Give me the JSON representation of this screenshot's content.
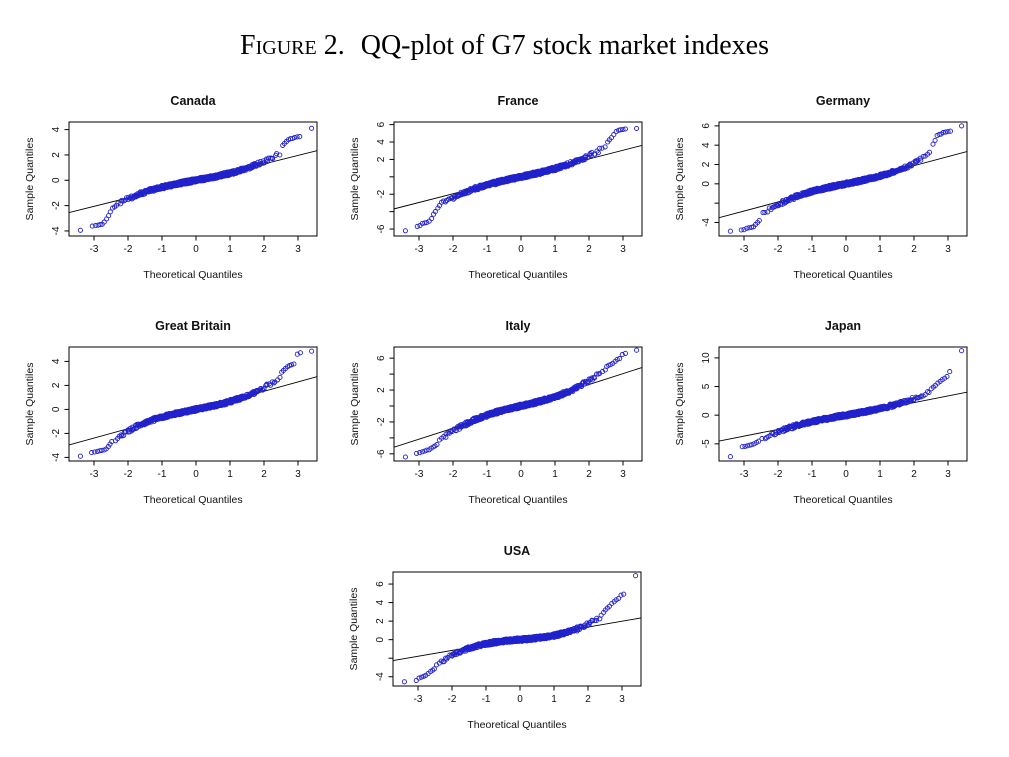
{
  "figure": {
    "label": "Figure 2.",
    "title": "QQ-plot of G7 stock market indexes"
  },
  "style": {
    "point_color": "#2222cc",
    "line_color": "#000000",
    "background": "#ffffff",
    "marker": "open-circle",
    "grid": false
  },
  "chart_data": [
    {
      "type": "scatter",
      "title": "Canada",
      "xlabel": "Theoretical Quantiles",
      "ylabel": "Sample Quantiles",
      "xticks": [
        -3,
        -2,
        -1,
        0,
        1,
        2,
        3
      ],
      "xlim": [
        -3.7,
        3.7
      ],
      "ytick_values": [
        -4,
        -2,
        0,
        2,
        4
      ],
      "ytick_labels": [
        "-4",
        "-2",
        "0",
        "2",
        "4"
      ],
      "ylim": [
        -4.4,
        4.6
      ],
      "ref_line": {
        "slope": 0.67,
        "intercept": -0.05
      },
      "cloud": {
        "n": 650,
        "slope": 0.49,
        "cubic": 0.062,
        "x_max": 2.5
      },
      "tail_points_left": [
        [
          -3.4,
          -3.95
        ],
        [
          -3.05,
          -3.62
        ],
        [
          -2.95,
          -3.58
        ],
        [
          -2.88,
          -3.55
        ],
        [
          -2.82,
          -3.5
        ],
        [
          -2.76,
          -3.48
        ],
        [
          -2.7,
          -3.3
        ],
        [
          -2.63,
          -3.05
        ],
        [
          -2.57,
          -2.8
        ],
        [
          -2.52,
          -2.5
        ]
      ],
      "tail_points_right": [
        [
          3.4,
          4.1
        ],
        [
          3.05,
          3.45
        ],
        [
          2.97,
          3.42
        ],
        [
          2.9,
          3.38
        ],
        [
          2.84,
          3.3
        ],
        [
          2.78,
          3.28
        ],
        [
          2.72,
          3.2
        ],
        [
          2.66,
          3.05
        ],
        [
          2.6,
          2.9
        ],
        [
          2.55,
          2.75
        ]
      ]
    },
    {
      "type": "scatter",
      "title": "France",
      "xlabel": "Theoretical Quantiles",
      "ylabel": "Sample Quantiles",
      "xticks": [
        -3,
        -2,
        -1,
        0,
        1,
        2,
        3
      ],
      "xlim": [
        -3.7,
        3.7
      ],
      "ytick_values": [
        -6,
        -4,
        -2,
        0,
        2,
        4,
        6
      ],
      "ytick_labels": [
        "-6",
        "",
        "-2",
        "",
        "2",
        "4",
        "6"
      ],
      "ylim": [
        -6.8,
        6.3
      ],
      "ref_line": {
        "slope": 1.0,
        "intercept": 0.05
      },
      "cloud": {
        "n": 650,
        "slope": 0.86,
        "cubic": 0.086,
        "x_max": 2.5
      },
      "tail_points_left": [
        [
          -3.4,
          -6.2
        ],
        [
          -3.05,
          -5.7
        ],
        [
          -2.97,
          -5.6
        ],
        [
          -2.9,
          -5.35
        ],
        [
          -2.83,
          -5.3
        ],
        [
          -2.77,
          -5.25
        ],
        [
          -2.7,
          -5.1
        ],
        [
          -2.63,
          -4.8
        ],
        [
          -2.57,
          -4.3
        ],
        [
          -2.52,
          -4.0
        ]
      ],
      "tail_points_right": [
        [
          3.4,
          5.55
        ],
        [
          3.07,
          5.5
        ],
        [
          3.0,
          5.45
        ],
        [
          2.93,
          5.4
        ],
        [
          2.87,
          5.35
        ],
        [
          2.8,
          5.2
        ],
        [
          2.73,
          4.85
        ],
        [
          2.66,
          4.5
        ],
        [
          2.6,
          4.25
        ],
        [
          2.55,
          4.0
        ]
      ]
    },
    {
      "type": "scatter",
      "title": "Germany",
      "xlabel": "Theoretical Quantiles",
      "ylabel": "Sample Quantiles",
      "xticks": [
        -3,
        -2,
        -1,
        0,
        1,
        2,
        3
      ],
      "xlim": [
        -3.7,
        3.7
      ],
      "ytick_values": [
        -4,
        -2,
        0,
        2,
        4,
        6
      ],
      "ytick_labels": [
        "-4",
        "",
        "0",
        "2",
        "4",
        "6"
      ],
      "ylim": [
        -5.4,
        6.4
      ],
      "ref_line": {
        "slope": 0.94,
        "intercept": 0.0
      },
      "cloud": {
        "n": 650,
        "slope": 0.708,
        "cubic": 0.0916,
        "x_max": 2.5
      },
      "tail_points_left": [
        [
          -3.4,
          -4.9
        ],
        [
          -3.08,
          -4.78
        ],
        [
          -3.0,
          -4.75
        ],
        [
          -2.92,
          -4.6
        ],
        [
          -2.85,
          -4.55
        ],
        [
          -2.78,
          -4.5
        ],
        [
          -2.72,
          -4.45
        ],
        [
          -2.66,
          -4.2
        ],
        [
          -2.6,
          -4.0
        ],
        [
          -2.55,
          -3.8
        ]
      ],
      "tail_points_right": [
        [
          3.4,
          6.0
        ],
        [
          3.07,
          5.45
        ],
        [
          3.0,
          5.4
        ],
        [
          2.93,
          5.35
        ],
        [
          2.86,
          5.3
        ],
        [
          2.8,
          5.15
        ],
        [
          2.74,
          5.1
        ],
        [
          2.68,
          5.0
        ],
        [
          2.62,
          4.5
        ],
        [
          2.56,
          4.1
        ]
      ]
    },
    {
      "type": "scatter",
      "title": "Great Britain",
      "xlabel": "Theoretical Quantiles",
      "ylabel": "Sample Quantiles",
      "xticks": [
        -3,
        -2,
        -1,
        0,
        1,
        2,
        3
      ],
      "xlim": [
        -3.7,
        3.7
      ],
      "ytick_values": [
        -4,
        -2,
        0,
        2,
        4
      ],
      "ytick_labels": [
        "-4",
        "-2",
        "0",
        "2",
        "4"
      ],
      "ylim": [
        -4.3,
        5.2
      ],
      "ref_line": {
        "slope": 0.78,
        "intercept": -0.05
      },
      "cloud": {
        "n": 650,
        "slope": 0.568,
        "cubic": 0.082,
        "x_max": 2.5
      },
      "tail_points_left": [
        [
          -3.4,
          -3.9
        ],
        [
          -3.07,
          -3.6
        ],
        [
          -2.98,
          -3.55
        ],
        [
          -2.9,
          -3.5
        ],
        [
          -2.83,
          -3.45
        ],
        [
          -2.77,
          -3.42
        ],
        [
          -2.7,
          -3.38
        ],
        [
          -2.64,
          -3.3
        ],
        [
          -2.58,
          -3.1
        ],
        [
          -2.53,
          -2.9
        ]
      ],
      "tail_points_right": [
        [
          3.4,
          4.85
        ],
        [
          3.07,
          4.72
        ],
        [
          2.98,
          4.6
        ],
        [
          2.88,
          3.78
        ],
        [
          2.81,
          3.72
        ],
        [
          2.75,
          3.65
        ],
        [
          2.69,
          3.55
        ],
        [
          2.63,
          3.4
        ],
        [
          2.57,
          3.25
        ],
        [
          2.52,
          3.1
        ]
      ]
    },
    {
      "type": "scatter",
      "title": "Italy",
      "xlabel": "Theoretical Quantiles",
      "ylabel": "Sample Quantiles",
      "xticks": [
        -3,
        -2,
        -1,
        0,
        1,
        2,
        3
      ],
      "xlim": [
        -3.7,
        3.7
      ],
      "ytick_values": [
        -6,
        -4,
        -2,
        0,
        2,
        4,
        6
      ],
      "ytick_labels": [
        "-6",
        "",
        "-2",
        "",
        "2",
        "",
        "6"
      ],
      "ylim": [
        -6.9,
        7.4
      ],
      "ref_line": {
        "slope": 1.37,
        "intercept": -0.05
      },
      "cloud": {
        "n": 650,
        "slope": 1.003,
        "cubic": 0.147,
        "x_max": 2.5
      },
      "tail_points_left": [
        [
          -3.4,
          -6.4
        ],
        [
          -3.07,
          -5.95
        ],
        [
          -2.98,
          -5.85
        ],
        [
          -2.9,
          -5.75
        ],
        [
          -2.83,
          -5.65
        ],
        [
          -2.77,
          -5.55
        ],
        [
          -2.7,
          -5.5
        ],
        [
          -2.64,
          -5.3
        ],
        [
          -2.58,
          -5.15
        ],
        [
          -2.53,
          -5.0
        ]
      ],
      "tail_points_right": [
        [
          3.4,
          7.0
        ],
        [
          3.07,
          6.6
        ],
        [
          2.98,
          6.45
        ],
        [
          2.9,
          5.95
        ],
        [
          2.83,
          5.85
        ],
        [
          2.77,
          5.6
        ],
        [
          2.7,
          5.35
        ],
        [
          2.64,
          5.2
        ],
        [
          2.58,
          5.1
        ],
        [
          2.52,
          4.95
        ]
      ]
    },
    {
      "type": "scatter",
      "title": "Japan",
      "xlabel": "Theoretical Quantiles",
      "ylabel": "Sample Quantiles",
      "xticks": [
        -3,
        -2,
        -1,
        0,
        1,
        2,
        3
      ],
      "xlim": [
        -3.7,
        3.7
      ],
      "ytick_values": [
        -5,
        0,
        5,
        10
      ],
      "ytick_labels": [
        "-5",
        "0",
        "5",
        "10"
      ],
      "ylim": [
        -8.0,
        11.9
      ],
      "ref_line": {
        "slope": 1.17,
        "intercept": -0.15
      },
      "cloud": {
        "n": 650,
        "slope": 1.049,
        "cubic": 0.101,
        "x_max": 2.5
      },
      "tail_points_left": [
        [
          -3.4,
          -7.25
        ],
        [
          -3.05,
          -5.5
        ],
        [
          -2.97,
          -5.45
        ],
        [
          -2.9,
          -5.35
        ],
        [
          -2.83,
          -5.25
        ],
        [
          -2.77,
          -5.15
        ],
        [
          -2.7,
          -5.0
        ],
        [
          -2.63,
          -4.75
        ],
        [
          -2.57,
          -4.55
        ]
      ],
      "tail_points_right": [
        [
          3.4,
          11.25
        ],
        [
          3.05,
          7.6
        ],
        [
          2.97,
          6.75
        ],
        [
          2.9,
          6.45
        ],
        [
          2.83,
          6.2
        ],
        [
          2.77,
          5.9
        ],
        [
          2.7,
          5.6
        ],
        [
          2.63,
          5.2
        ],
        [
          2.57,
          4.9
        ],
        [
          2.51,
          4.6
        ]
      ]
    },
    {
      "type": "scatter",
      "title": "USA",
      "xlabel": "Theoretical Quantiles",
      "ylabel": "Sample Quantiles",
      "xticks": [
        -3,
        -2,
        -1,
        0,
        1,
        2,
        3
      ],
      "xlim": [
        -3.7,
        3.7
      ],
      "ytick_values": [
        -4,
        -2,
        0,
        2,
        4,
        6
      ],
      "ytick_labels": [
        "-4",
        "",
        "0",
        "2",
        "4",
        "6"
      ],
      "ylim": [
        -5.0,
        7.3
      ],
      "ref_line": {
        "slope": 0.63,
        "intercept": 0.1
      },
      "cloud": {
        "n": 650,
        "slope": 0.315,
        "cubic": 0.135,
        "x_max": 2.5
      },
      "tail_points_left": [
        [
          -3.4,
          -4.55
        ],
        [
          -3.05,
          -4.4
        ],
        [
          -2.97,
          -4.15
        ],
        [
          -2.9,
          -4.05
        ],
        [
          -2.83,
          -3.95
        ],
        [
          -2.77,
          -3.85
        ],
        [
          -2.7,
          -3.65
        ],
        [
          -2.63,
          -3.45
        ],
        [
          -2.57,
          -3.3
        ],
        [
          -2.52,
          -3.15
        ]
      ],
      "tail_points_right": [
        [
          3.4,
          6.9
        ],
        [
          3.05,
          4.9
        ],
        [
          2.97,
          4.8
        ],
        [
          2.9,
          4.45
        ],
        [
          2.83,
          4.3
        ],
        [
          2.77,
          4.1
        ],
        [
          2.7,
          3.9
        ],
        [
          2.63,
          3.6
        ],
        [
          2.57,
          3.4
        ],
        [
          2.51,
          3.2
        ]
      ]
    }
  ]
}
